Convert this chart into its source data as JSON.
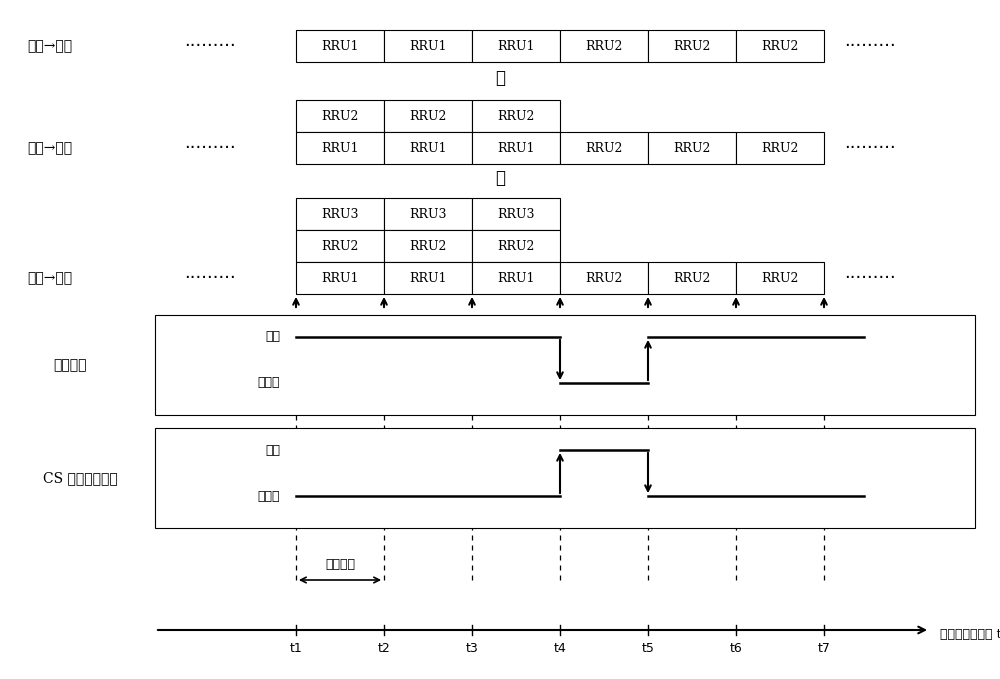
{
  "fig_width": 10.0,
  "fig_height": 6.79,
  "bg": "#ffffff",
  "t_labels": [
    "t1",
    "t2",
    "t3",
    "t4",
    "t5",
    "t6",
    "t7"
  ],
  "row1_label": "单发→单发",
  "row2_label": "双发→单发",
  "row3_label": "多发→单发",
  "or_label": "或",
  "ctrl1_label": "常规功控",
  "ctrl1_exec": "执行",
  "ctrl1_noexec": "不执行",
  "ctrl2_label": "CS 单位置组功控",
  "ctrl2_exec": "执行",
  "ctrl2_noexec": "不执行",
  "judgment_label": "判决周期",
  "axis_label": "位置组判决时刻 t"
}
